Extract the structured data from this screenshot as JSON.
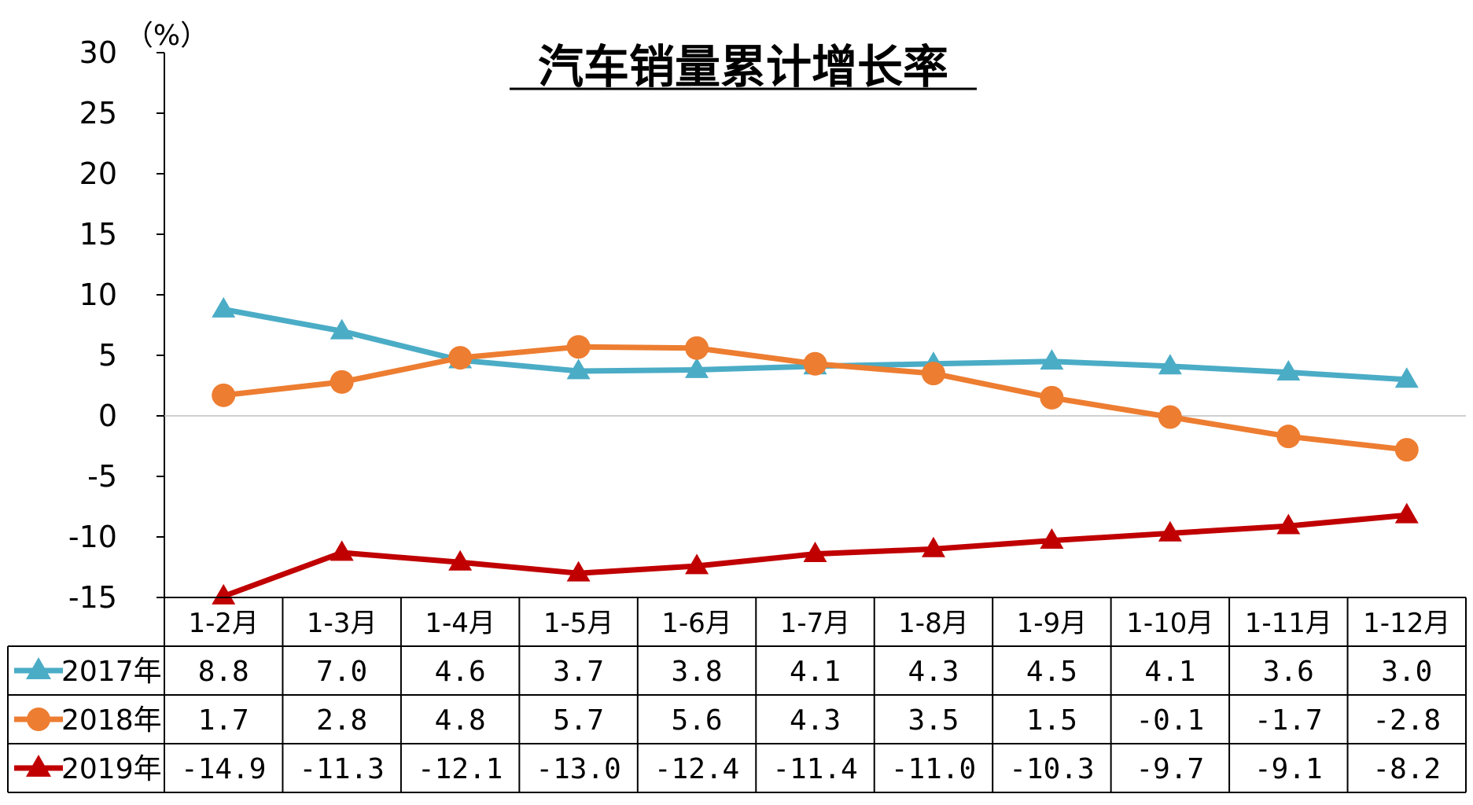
{
  "chart_data": {
    "type": "line",
    "title": "汽车销量累计增长率",
    "y_unit": "（%）",
    "ylim": [
      -15,
      30
    ],
    "yticks": [
      "30",
      "25",
      "20",
      "15",
      "10",
      "5",
      "0",
      "-5",
      "-10",
      "-15"
    ],
    "categories": [
      "1-2月",
      "1-3月",
      "1-4月",
      "1-5月",
      "1-6月",
      "1-7月",
      "1-8月",
      "1-9月",
      "1-10月",
      "1-11月",
      "1-12月"
    ],
    "series": [
      {
        "name": "2017年",
        "color": "#4bacc6",
        "marker": "triangle",
        "values": [
          8.8,
          7.0,
          4.6,
          3.7,
          3.8,
          4.1,
          4.3,
          4.5,
          4.1,
          3.6,
          3.0
        ],
        "labels": [
          "8.8",
          "7.0",
          "4.6",
          "3.7",
          "3.8",
          "4.1",
          "4.3",
          "4.5",
          "4.1",
          "3.6",
          "3.0"
        ]
      },
      {
        "name": "2018年",
        "color": "#ed7d31",
        "marker": "circle",
        "values": [
          1.7,
          2.8,
          4.8,
          5.7,
          5.6,
          4.3,
          3.5,
          1.5,
          -0.1,
          -1.7,
          -2.8
        ],
        "labels": [
          "1.7",
          "2.8",
          "4.8",
          "5.7",
          "5.6",
          "4.3",
          "3.5",
          "1.5",
          "-0.1",
          "-1.7",
          "-2.8"
        ]
      },
      {
        "name": "2019年",
        "color": "#c00000",
        "marker": "triangle",
        "values": [
          -14.9,
          -11.3,
          -12.1,
          -13.0,
          -12.4,
          -11.4,
          -11.0,
          -10.3,
          -9.7,
          -9.1,
          -8.2
        ],
        "labels": [
          "-14.9",
          "-11.3",
          "-12.1",
          "-13.0",
          "-12.4",
          "-11.4",
          "-11.0",
          "-10.3",
          "-9.7",
          "-9.1",
          "-8.2"
        ]
      }
    ],
    "grid": false,
    "legend": "data-table-left"
  }
}
